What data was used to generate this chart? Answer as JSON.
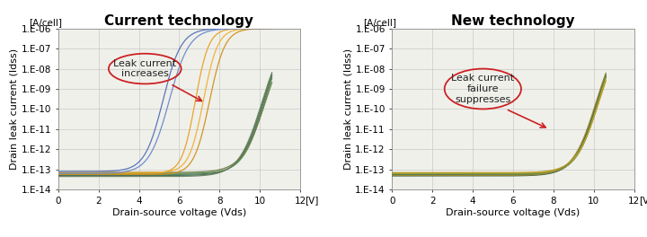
{
  "title_left": "Current technology",
  "title_right": "New technology",
  "xlabel": "Drain-source voltage (Vds)",
  "ylabel": "Drain leak current (Idss)",
  "unit_x": "[V]",
  "unit_y": "[A/cell]",
  "xlim": [
    0,
    12
  ],
  "ylim_log": [
    -14,
    -6
  ],
  "ytick_labels": [
    "1.E-14",
    "1.E-13",
    "1.E-12",
    "1.E-11",
    "1.E-10",
    "1.E-09",
    "1.E-08",
    "1.E-07",
    "1.E-06"
  ],
  "xtick_labels": [
    "0",
    "2",
    "4",
    "6",
    "8",
    "10",
    "12"
  ],
  "xtick_vals": [
    0,
    2,
    4,
    6,
    8,
    10,
    12
  ],
  "annotation_left": "Leak current\nincreases",
  "annotation_right": "Leak current\nfailure\nsuppresses",
  "bg_color": "#f0f0eb",
  "grid_color": "#c8c8c8",
  "title_fontsize": 11,
  "label_fontsize": 8,
  "tick_fontsize": 7.5
}
